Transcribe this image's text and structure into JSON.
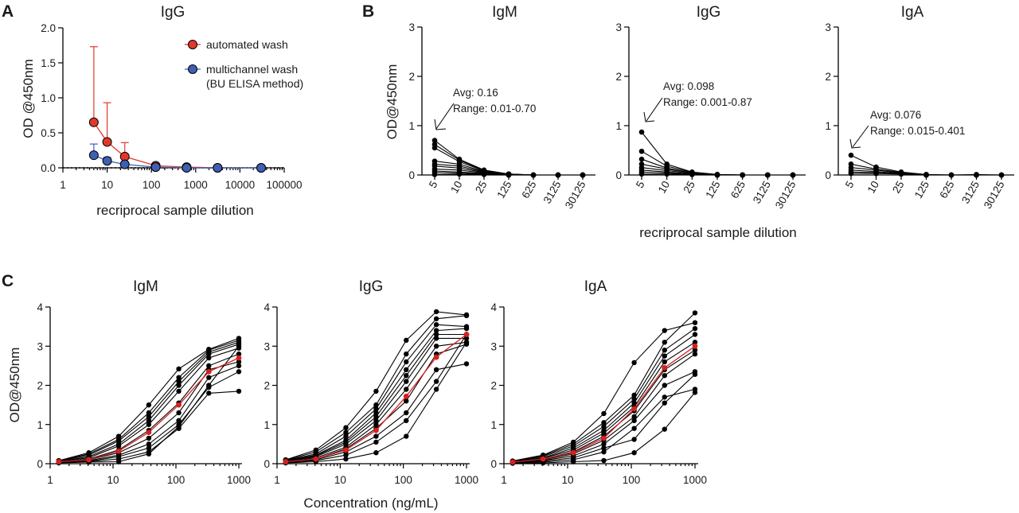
{
  "panel_labels": {
    "a": "A",
    "b": "B",
    "c": "C"
  },
  "colors": {
    "automated": "#e0392b",
    "multichannel": "#3f5fb3",
    "sample": "#000000",
    "highlight": "#d62020",
    "zero_line": "#000000"
  },
  "shared_labels": {
    "b_xlabel": "recriprocal sample dilution",
    "c_xlabel": "Concentration (ng/mL)",
    "c_ylabel": "OD@450nm"
  },
  "annotations": {
    "igm": {
      "avg": "Avg: 0.16",
      "range": "Range: 0.01-0.70"
    },
    "igg": {
      "avg": "Avg: 0.098",
      "range": "Range: 0.001-0.87"
    },
    "iga": {
      "avg": "Avg: 0.076",
      "range": "Range: 0.015-0.401"
    }
  },
  "chart_data": [
    {
      "id": "A",
      "type": "line",
      "title": "IgG",
      "xlabel": "recriprocal sample dilution",
      "ylabel": "OD @450nm",
      "xscale": "log",
      "xlim": [
        1,
        100000
      ],
      "ylim": [
        0,
        2.0
      ],
      "xticks": [
        "1",
        "10",
        "100",
        "1000",
        "10000",
        "100000"
      ],
      "yticks": [
        "0.0",
        "0.5",
        "1.0",
        "1.5",
        "2.0"
      ],
      "reference_line": {
        "y": 0,
        "style": "dotted"
      },
      "legend_position": "top-right",
      "x": [
        5,
        10,
        25,
        125,
        625,
        3125,
        30125
      ],
      "series": [
        {
          "name": "automated wash",
          "values": [
            0.65,
            0.37,
            0.16,
            0.03,
            0.01,
            0.0,
            0.0
          ],
          "error_upper": [
            1.73,
            0.93,
            0.36,
            0.05,
            0.01,
            0.0,
            0.0
          ]
        },
        {
          "name": "multichannel wash (BU ELISA method)",
          "values": [
            0.18,
            0.1,
            0.05,
            0.01,
            0.0,
            0.0,
            0.0
          ],
          "error_upper": [
            0.34,
            0.15,
            0.07,
            0.01,
            0.0,
            0.0,
            0.0
          ]
        }
      ]
    },
    {
      "id": "B1",
      "type": "line",
      "title": "IgM",
      "ylabel": "OD@450nm",
      "ylim": [
        0,
        3
      ],
      "yticks": [
        "0",
        "1",
        "2",
        "3"
      ],
      "categories": [
        "5",
        "10",
        "25",
        "125",
        "625",
        "3125",
        "30125"
      ],
      "series": [
        {
          "values": [
            0.7,
            0.32,
            0.1,
            0.02,
            0.0,
            0.0,
            0.0
          ]
        },
        {
          "values": [
            0.62,
            0.3,
            0.09,
            0.02,
            0.0,
            0.0,
            0.0
          ]
        },
        {
          "values": [
            0.55,
            0.27,
            0.08,
            0.02,
            0.0,
            0.0,
            0.0
          ]
        },
        {
          "values": [
            0.28,
            0.22,
            0.07,
            0.01,
            0.0,
            0.0,
            0.0
          ]
        },
        {
          "values": [
            0.22,
            0.18,
            0.06,
            0.01,
            0.0,
            0.0,
            0.0
          ]
        },
        {
          "values": [
            0.18,
            0.14,
            0.05,
            0.01,
            0.0,
            0.0,
            0.0
          ]
        },
        {
          "values": [
            0.12,
            0.1,
            0.04,
            0.01,
            0.0,
            0.0,
            0.0
          ]
        },
        {
          "values": [
            0.08,
            0.06,
            0.03,
            0.0,
            0.0,
            0.0,
            0.0
          ]
        },
        {
          "values": [
            0.05,
            0.04,
            0.02,
            0.0,
            0.0,
            0.0,
            0.0
          ]
        },
        {
          "values": [
            0.01,
            0.02,
            0.01,
            0.0,
            0.0,
            0.0,
            0.0
          ]
        }
      ]
    },
    {
      "id": "B2",
      "type": "line",
      "title": "IgG",
      "ylim": [
        0,
        3
      ],
      "yticks": [
        "0",
        "1",
        "2",
        "3"
      ],
      "categories": [
        "5",
        "10",
        "25",
        "125",
        "625",
        "3125",
        "30125"
      ],
      "series": [
        {
          "values": [
            0.87,
            0.22,
            0.06,
            0.01,
            0.0,
            0.0,
            0.0
          ]
        },
        {
          "values": [
            0.48,
            0.18,
            0.05,
            0.01,
            0.0,
            0.0,
            0.0
          ]
        },
        {
          "values": [
            0.32,
            0.14,
            0.04,
            0.01,
            0.0,
            0.0,
            0.0
          ]
        },
        {
          "values": [
            0.22,
            0.12,
            0.04,
            0.0,
            0.0,
            0.0,
            0.0
          ]
        },
        {
          "values": [
            0.15,
            0.09,
            0.03,
            0.0,
            0.0,
            0.0,
            0.0
          ]
        },
        {
          "values": [
            0.1,
            0.06,
            0.02,
            0.0,
            0.0,
            0.0,
            0.0
          ]
        },
        {
          "values": [
            0.06,
            0.04,
            0.01,
            0.0,
            0.0,
            0.0,
            0.0
          ]
        },
        {
          "values": [
            0.02,
            0.02,
            0.01,
            0.0,
            0.0,
            0.0,
            0.0
          ]
        }
      ]
    },
    {
      "id": "B3",
      "type": "line",
      "title": "IgA",
      "ylim": [
        0,
        3
      ],
      "yticks": [
        "0",
        "1",
        "2",
        "3"
      ],
      "categories": [
        "5",
        "10",
        "25",
        "125",
        "625",
        "3125",
        "30125"
      ],
      "series": [
        {
          "values": [
            0.4,
            0.16,
            0.06,
            0.01,
            0.0,
            0.01,
            0.0
          ]
        },
        {
          "values": [
            0.22,
            0.12,
            0.05,
            0.01,
            0.0,
            0.0,
            0.0
          ]
        },
        {
          "values": [
            0.15,
            0.1,
            0.04,
            0.0,
            0.0,
            0.0,
            0.0
          ]
        },
        {
          "values": [
            0.1,
            0.07,
            0.03,
            0.0,
            0.0,
            0.0,
            0.0
          ]
        },
        {
          "values": [
            0.06,
            0.05,
            0.02,
            0.0,
            0.0,
            0.0,
            0.0
          ]
        },
        {
          "values": [
            0.03,
            0.03,
            0.02,
            0.0,
            0.0,
            0.0,
            0.0
          ]
        }
      ]
    },
    {
      "id": "C1",
      "type": "line",
      "title": "IgM",
      "xscale": "log",
      "xlim": [
        1,
        1000
      ],
      "ylim": [
        0,
        4
      ],
      "xticks": [
        "1",
        "10",
        "100",
        "1000"
      ],
      "yticks": [
        "0",
        "1",
        "2",
        "3",
        "4"
      ],
      "x": [
        1.37,
        4.12,
        12.3,
        37,
        111,
        333,
        1000
      ],
      "series": [
        {
          "values": [
            0.08,
            0.28,
            0.7,
            1.5,
            2.42,
            2.92,
            3.2
          ]
        },
        {
          "values": [
            0.07,
            0.25,
            0.62,
            1.3,
            2.2,
            2.9,
            3.15
          ]
        },
        {
          "values": [
            0.06,
            0.22,
            0.58,
            1.2,
            2.1,
            2.85,
            3.1
          ]
        },
        {
          "values": [
            0.05,
            0.18,
            0.5,
            1.1,
            2.0,
            2.8,
            3.05
          ]
        },
        {
          "values": [
            0.05,
            0.15,
            0.45,
            1.0,
            1.85,
            2.7,
            2.95
          ]
        },
        {
          "values": [
            0.04,
            0.12,
            0.35,
            0.85,
            1.55,
            2.5,
            2.8
          ]
        },
        {
          "values": [
            0.04,
            0.1,
            0.28,
            0.65,
            1.3,
            2.4,
            2.6
          ]
        },
        {
          "values": [
            0.03,
            0.08,
            0.22,
            0.5,
            1.1,
            2.2,
            2.5
          ]
        },
        {
          "values": [
            0.03,
            0.06,
            0.18,
            0.4,
            1.0,
            1.95,
            2.35
          ]
        },
        {
          "values": [
            0.03,
            0.05,
            0.12,
            0.3,
            0.9,
            1.8,
            1.85
          ]
        },
        {
          "values": [
            0.02,
            0.04,
            0.05,
            0.25,
            0.95,
            2.0,
            3.0
          ]
        }
      ],
      "highlight": {
        "values": [
          0.05,
          0.1,
          0.32,
          0.8,
          1.5,
          2.35,
          2.7
        ]
      }
    },
    {
      "id": "C2",
      "type": "line",
      "title": "IgG",
      "xscale": "log",
      "xlim": [
        1,
        1000
      ],
      "ylim": [
        0,
        4
      ],
      "xticks": [
        "1",
        "10",
        "100",
        "1000"
      ],
      "yticks": [
        "0",
        "1",
        "2",
        "3",
        "4"
      ],
      "x": [
        1.37,
        4.12,
        12.3,
        37,
        111,
        333,
        1000
      ],
      "series": [
        {
          "values": [
            0.1,
            0.35,
            0.92,
            1.85,
            3.15,
            3.88,
            3.8
          ]
        },
        {
          "values": [
            0.09,
            0.3,
            0.8,
            1.5,
            2.8,
            3.7,
            3.78
          ]
        },
        {
          "values": [
            0.08,
            0.25,
            0.7,
            1.4,
            2.6,
            3.55,
            3.5
          ]
        },
        {
          "values": [
            0.07,
            0.22,
            0.6,
            1.3,
            2.4,
            3.4,
            3.45
          ]
        },
        {
          "values": [
            0.06,
            0.2,
            0.55,
            1.2,
            2.25,
            3.3,
            3.3
          ]
        },
        {
          "values": [
            0.05,
            0.18,
            0.5,
            1.1,
            2.1,
            3.2,
            3.2
          ]
        },
        {
          "values": [
            0.05,
            0.15,
            0.42,
            1.0,
            1.9,
            3.0,
            3.1
          ]
        },
        {
          "values": [
            0.04,
            0.12,
            0.38,
            0.9,
            1.6,
            2.8,
            3.05
          ]
        },
        {
          "values": [
            0.04,
            0.1,
            0.3,
            0.7,
            1.3,
            2.4,
            2.55
          ]
        },
        {
          "values": [
            0.03,
            0.08,
            0.22,
            0.55,
            1.1,
            2.1,
            3.3
          ]
        },
        {
          "values": [
            0.02,
            0.05,
            0.12,
            0.28,
            0.7,
            1.9,
            3.1
          ]
        }
      ],
      "highlight": {
        "values": [
          0.05,
          0.12,
          0.35,
          0.85,
          1.72,
          2.72,
          3.3
        ]
      }
    },
    {
      "id": "C3",
      "type": "line",
      "title": "IgA",
      "xscale": "log",
      "xlim": [
        1,
        1000
      ],
      "ylim": [
        0,
        4
      ],
      "xticks": [
        "1",
        "10",
        "100",
        "1000"
      ],
      "yticks": [
        "0",
        "1",
        "2",
        "3",
        "4"
      ],
      "x": [
        1.37,
        4.12,
        12.3,
        37,
        111,
        333,
        1000
      ],
      "series": [
        {
          "values": [
            0.07,
            0.22,
            0.55,
            1.28,
            2.58,
            3.4,
            3.6
          ]
        },
        {
          "values": [
            0.06,
            0.2,
            0.5,
            1.05,
            1.75,
            3.1,
            3.85
          ]
        },
        {
          "values": [
            0.05,
            0.18,
            0.45,
            0.95,
            1.65,
            2.9,
            3.45
          ]
        },
        {
          "values": [
            0.05,
            0.15,
            0.4,
            0.85,
            1.55,
            2.75,
            3.3
          ]
        },
        {
          "values": [
            0.04,
            0.14,
            0.35,
            0.78,
            1.45,
            2.6,
            3.1
          ]
        },
        {
          "values": [
            0.04,
            0.12,
            0.3,
            0.7,
            1.35,
            2.4,
            2.9
          ]
        },
        {
          "values": [
            0.03,
            0.1,
            0.25,
            0.6,
            1.2,
            2.25,
            2.8
          ]
        },
        {
          "values": [
            0.03,
            0.08,
            0.2,
            0.5,
            1.1,
            2.0,
            2.35
          ]
        },
        {
          "values": [
            0.02,
            0.06,
            0.15,
            0.4,
            0.62,
            1.55,
            2.28
          ]
        },
        {
          "values": [
            0.02,
            0.04,
            0.1,
            0.3,
            0.9,
            1.7,
            1.9
          ]
        },
        {
          "values": [
            0.01,
            0.02,
            0.05,
            0.08,
            0.28,
            0.88,
            1.82
          ]
        }
      ],
      "highlight": {
        "values": [
          0.04,
          0.12,
          0.28,
          0.65,
          1.4,
          2.45,
          3.0
        ]
      }
    }
  ]
}
